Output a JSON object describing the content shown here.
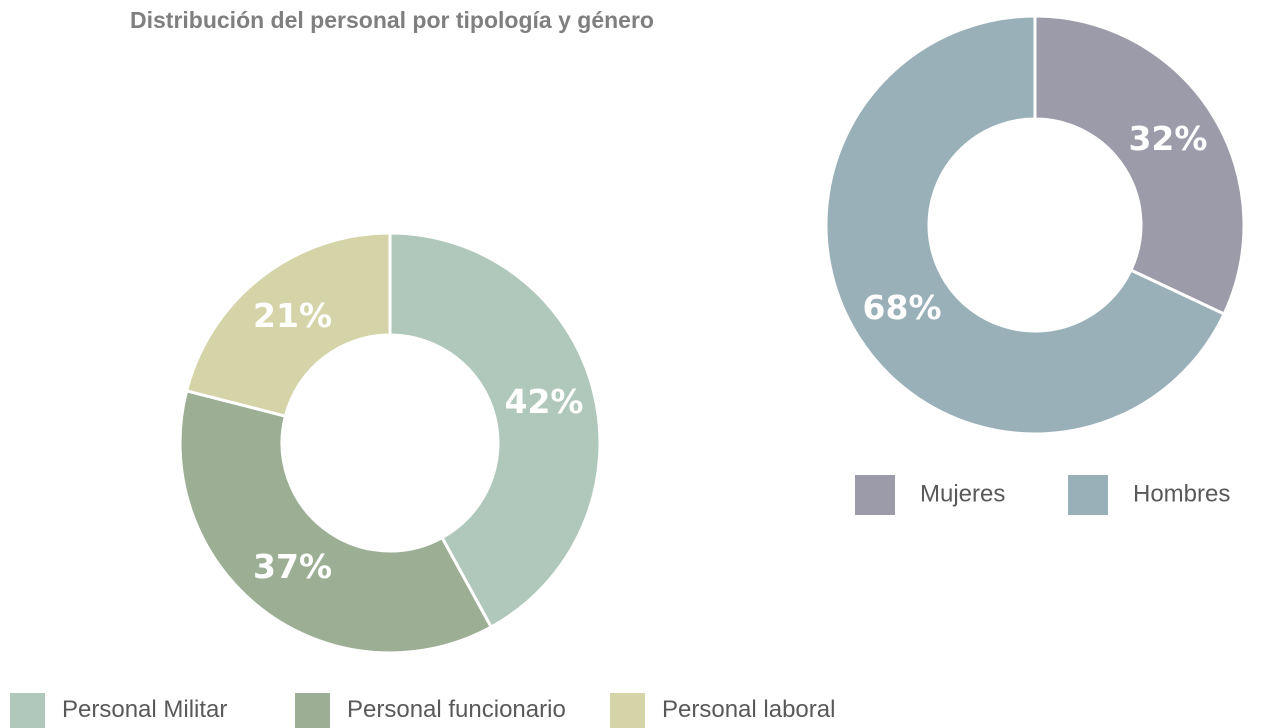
{
  "title": "Distribución del personal por tipología y género",
  "chart_data": [
    {
      "type": "donut",
      "categories": [
        "Personal Militar",
        "Personal funcionario",
        "Personal laboral"
      ],
      "values": [
        42,
        37,
        21
      ],
      "value_labels": [
        "42%",
        "37%",
        "21%"
      ],
      "colors": [
        "#b0c8bb",
        "#9caf94",
        "#d4d4a8"
      ]
    },
    {
      "type": "donut",
      "categories": [
        "Mujeres",
        "Hombres"
      ],
      "values": [
        32,
        68
      ],
      "value_labels": [
        "32%",
        "68%"
      ],
      "colors": [
        "#9b9ba9",
        "#99b0b9"
      ]
    }
  ]
}
